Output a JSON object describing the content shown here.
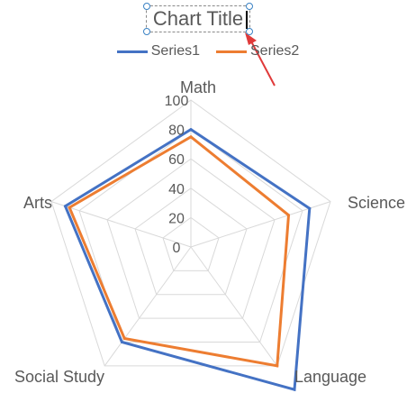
{
  "chart_data": {
    "type": "radar",
    "title": "Chart Title",
    "categories": [
      "Math",
      "Science",
      "Language",
      "Social Study",
      "Arts"
    ],
    "r_ticks": [
      "0",
      "20",
      "40",
      "60",
      "80",
      "100"
    ],
    "r_range": [
      0,
      100
    ],
    "grid": true,
    "legend_position": "top",
    "series": [
      {
        "name": "Series1",
        "color": "#4472c4",
        "values": [
          80,
          85,
          120,
          80,
          90
        ]
      },
      {
        "name": "Series2",
        "color": "#ed7d31",
        "values": [
          75,
          70,
          100,
          77,
          87
        ]
      }
    ]
  },
  "colors": {
    "grid": "#d9d9d9",
    "label": "#595959",
    "selection_handle": "#3a82c4",
    "annotation_arrow": "#e03a3a"
  }
}
